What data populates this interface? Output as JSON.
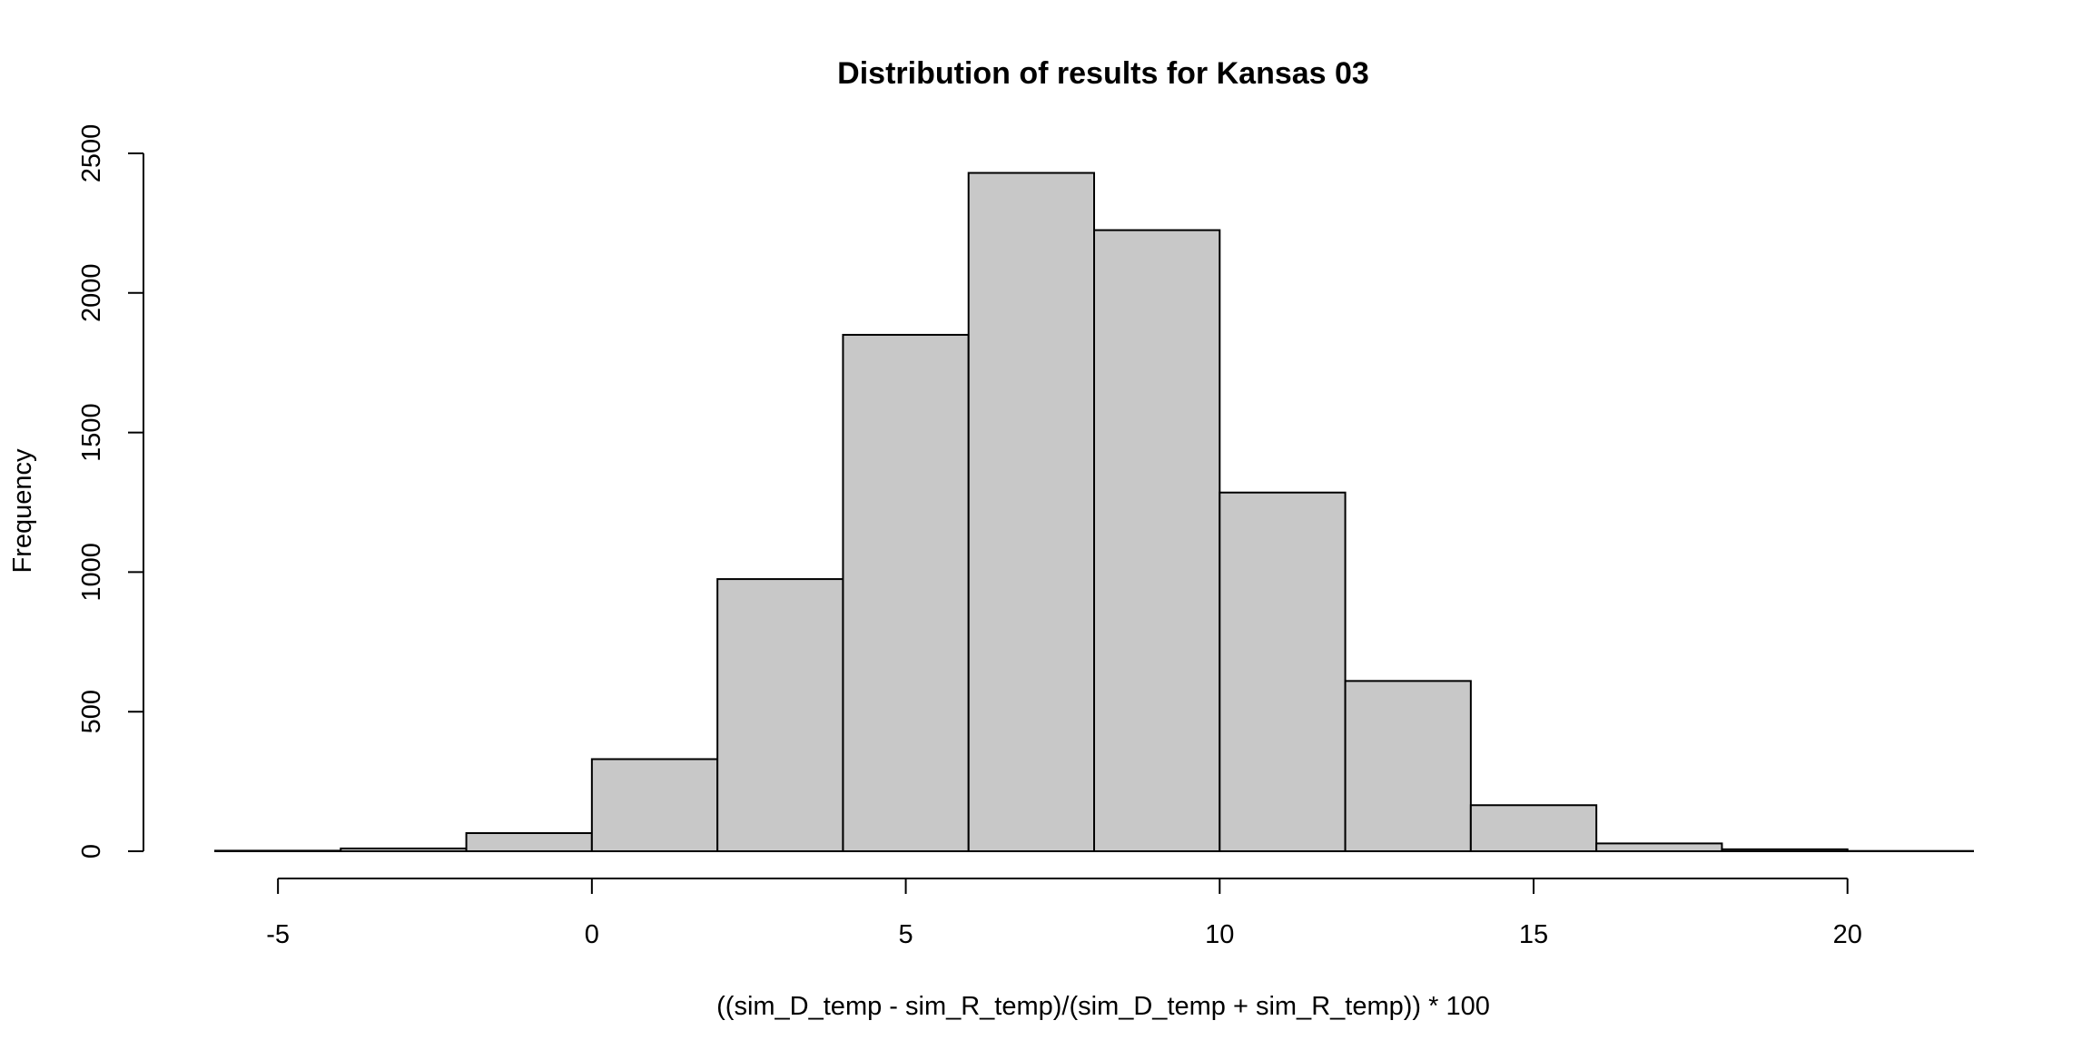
{
  "chart_data": {
    "type": "bar",
    "subtype": "histogram",
    "title": "Distribution of results for Kansas 03",
    "xlabel": "((sim_D_temp - sim_R_temp)/(sim_D_temp + sim_R_temp)) * 100",
    "ylabel": "Frequency",
    "bin_edges": [
      -6,
      -4,
      -2,
      0,
      2,
      4,
      6,
      8,
      10,
      12,
      14,
      16,
      18,
      20,
      22
    ],
    "values": [
      2,
      10,
      65,
      330,
      975,
      1850,
      2430,
      2225,
      1285,
      610,
      165,
      28,
      7,
      1
    ],
    "xlim": [
      -6,
      22
    ],
    "ylim": [
      0,
      2500
    ],
    "x_ticks": [
      -5,
      0,
      5,
      10,
      15,
      20
    ],
    "y_ticks": [
      0,
      500,
      1000,
      1500,
      2000,
      2500
    ],
    "x_tick_labels": [
      "-5",
      "0",
      "5",
      "10",
      "15",
      "20"
    ],
    "y_tick_labels": [
      "0",
      "500",
      "1000",
      "1500",
      "2000",
      "2500"
    ],
    "bar_color": "#c8c8c8",
    "edge_color": "#000000",
    "grid": false,
    "legend": "none"
  }
}
